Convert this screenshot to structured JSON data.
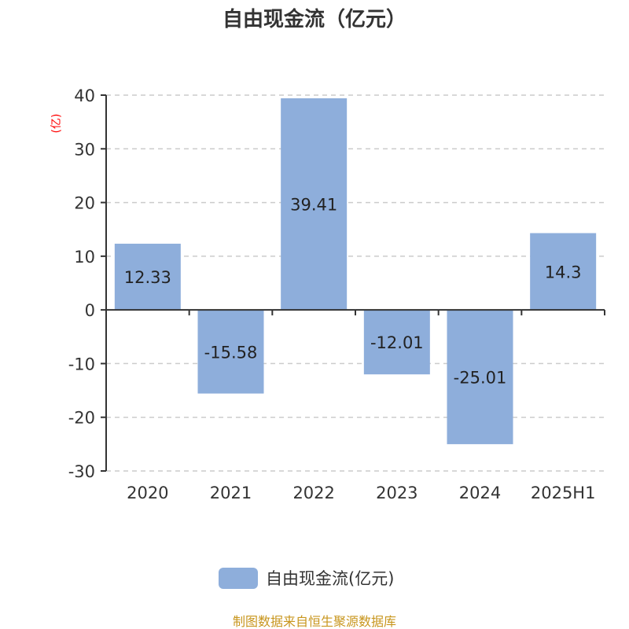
{
  "chart_data": {
    "type": "bar",
    "title": "自由现金流（亿元）",
    "ylabel": "(亿)",
    "xlabel": "",
    "categories": [
      "2020",
      "2021",
      "2022",
      "2023",
      "2024",
      "2025H1"
    ],
    "series": [
      {
        "name": "自由现金流(亿元)",
        "values": [
          12.33,
          -15.58,
          39.41,
          -12.01,
          -25.01,
          14.3
        ]
      }
    ],
    "data_labels": [
      "12.33",
      "-15.58",
      "39.41",
      "-12.01",
      "-25.01",
      "14.3"
    ],
    "ylim": [
      -30,
      40
    ],
    "yticks": [
      40,
      30,
      20,
      10,
      0,
      -10,
      -20,
      -30
    ],
    "grid": true,
    "legend_position": "bottom",
    "colors": {
      "bar": "#8eaedb",
      "ylabel": "#ff0000",
      "source": "#c8961e"
    }
  },
  "source": "制图数据来自恒生聚源数据库"
}
